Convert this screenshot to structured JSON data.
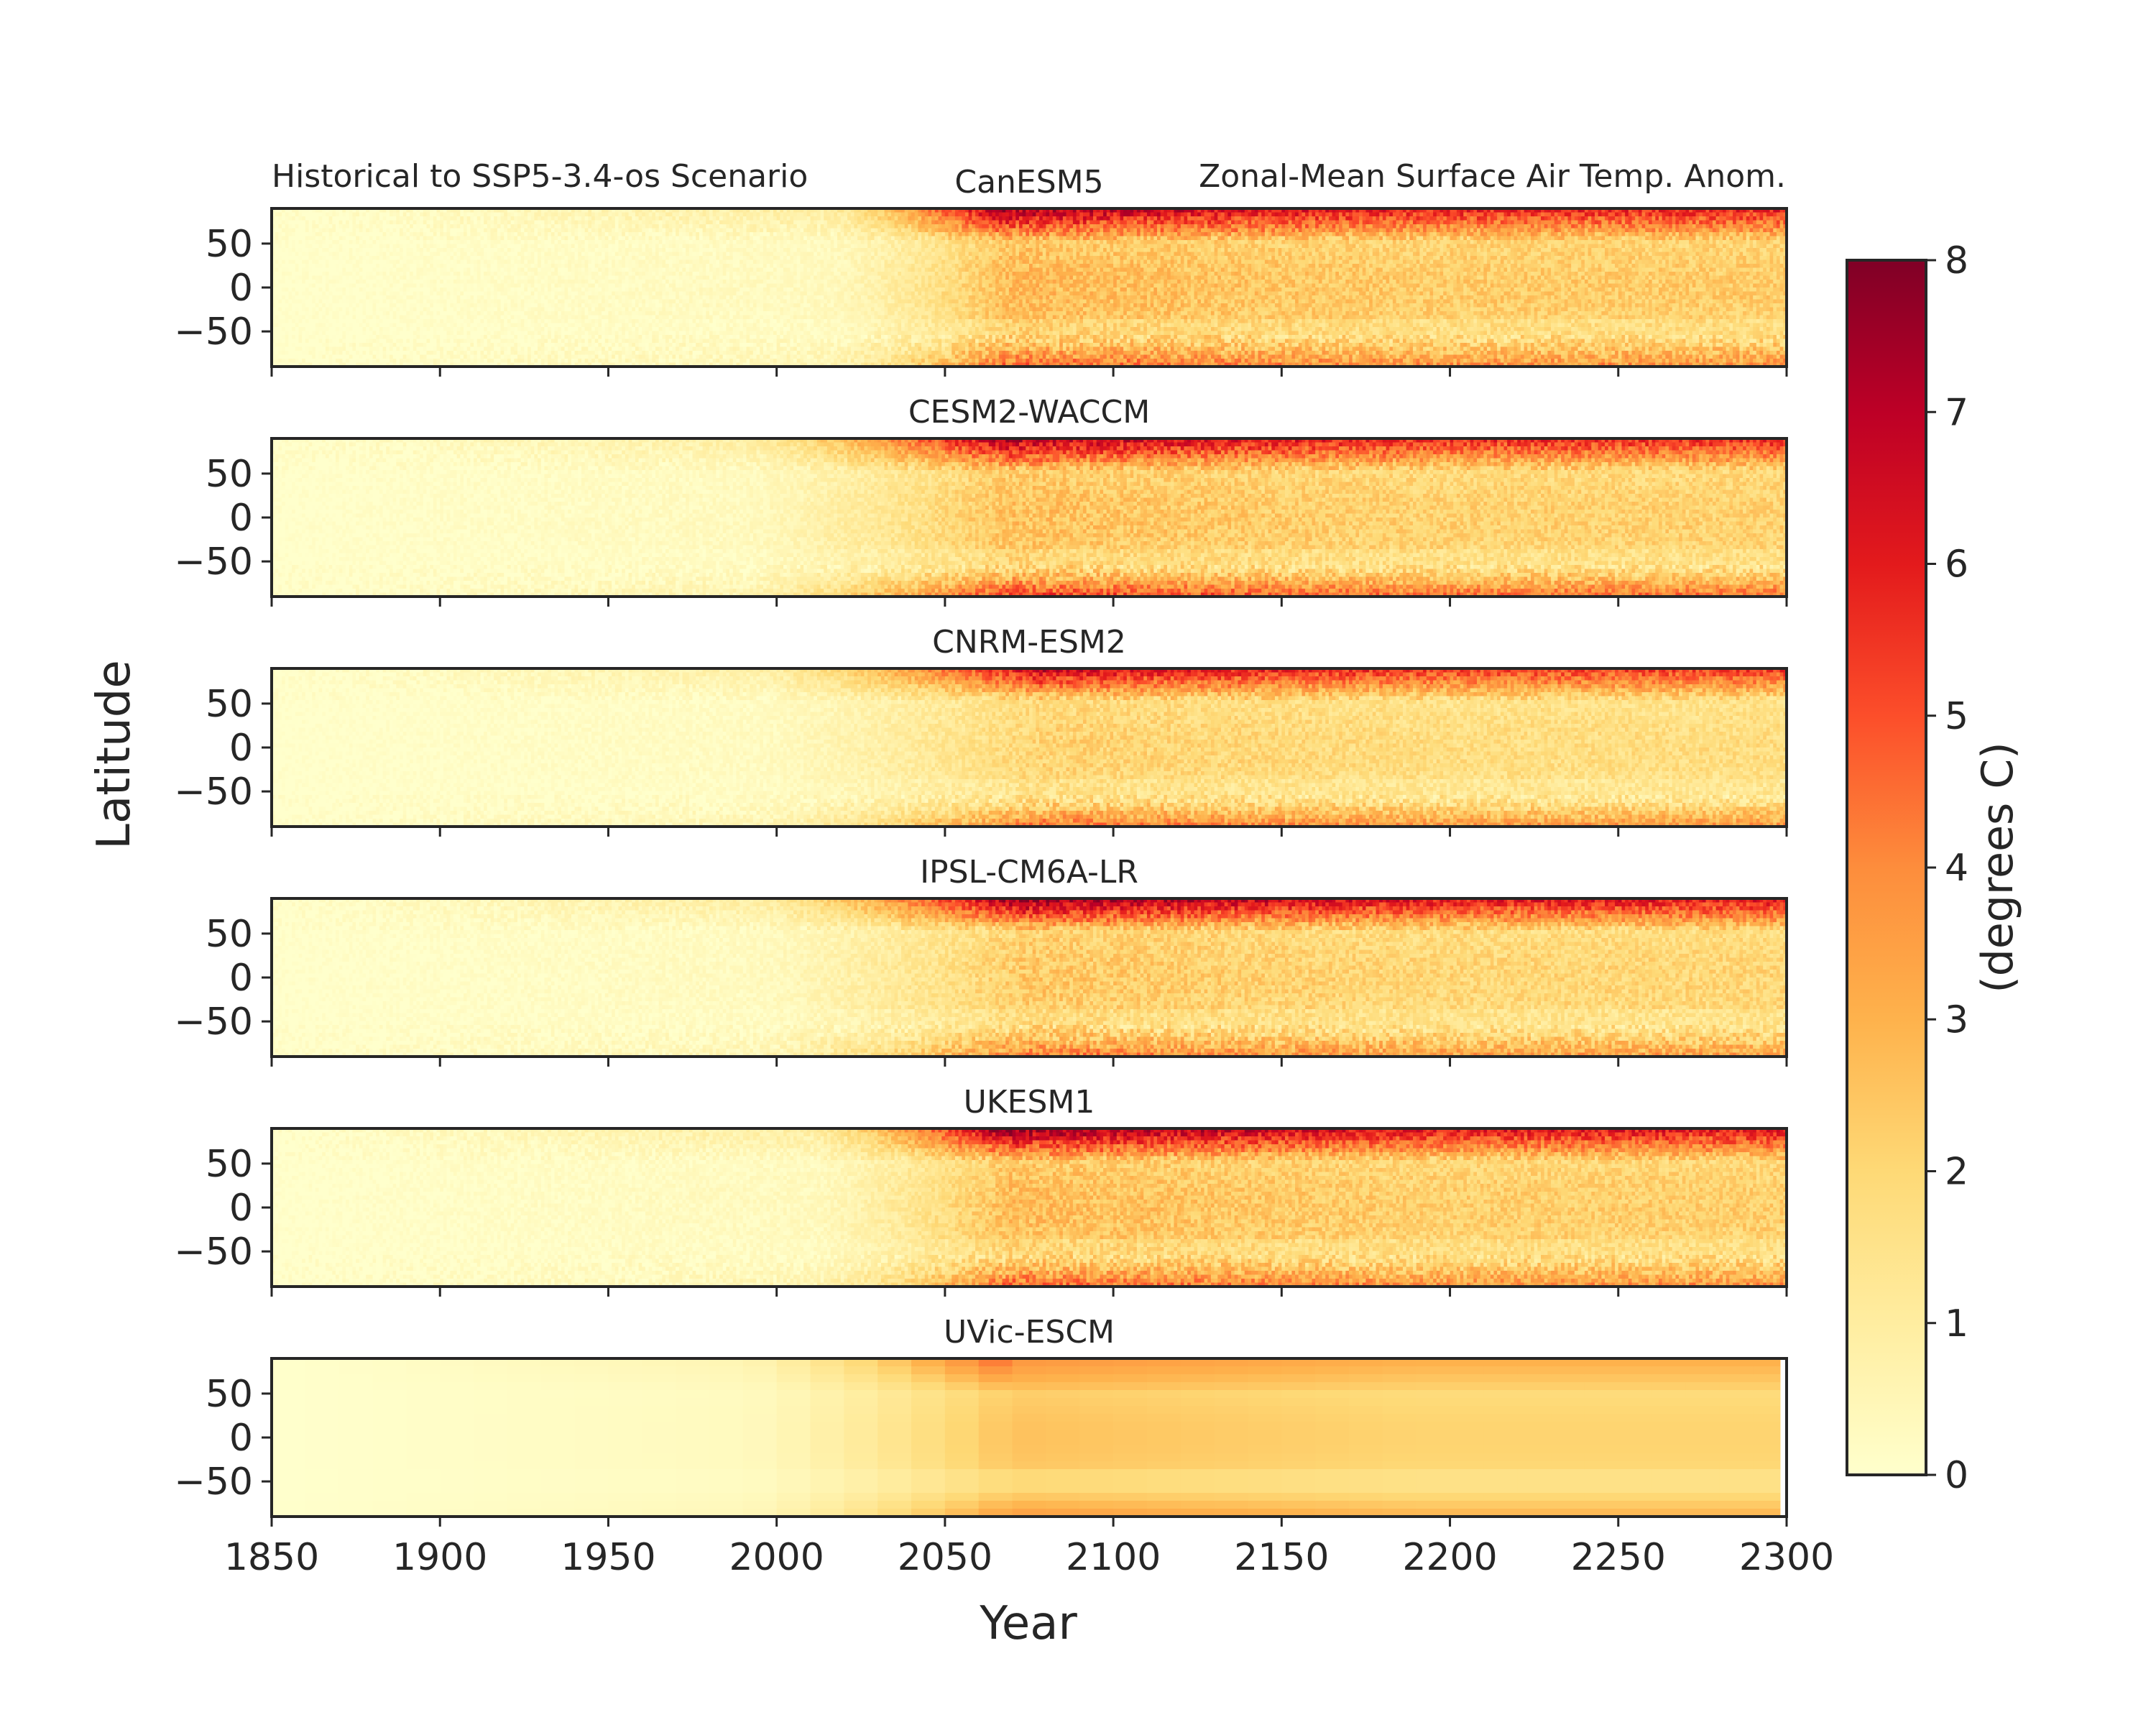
{
  "figure": {
    "title_left": "Historical to SSP5-3.4-os Scenario",
    "title_right": "Zonal-Mean Surface Air Temp. Anom.",
    "xlabel": "Year",
    "ylabel": "Latitude"
  },
  "colorbar": {
    "label": "(degrees C)",
    "range": [
      0,
      8
    ],
    "ticks": [
      "0",
      "1",
      "2",
      "3",
      "4",
      "5",
      "6",
      "7",
      "8"
    ],
    "colormap": "YlOrRd",
    "stops": [
      "#ffffcc",
      "#ffeda0",
      "#fed976",
      "#feb24c",
      "#fd8d3c",
      "#fc4e2a",
      "#e31a1c",
      "#bd0026",
      "#800026"
    ]
  },
  "chart_data": {
    "type": "heatmap",
    "xlim": [
      1850,
      2300
    ],
    "ylim": [
      -90,
      90
    ],
    "x_ticks": [
      "1850",
      "1900",
      "1950",
      "2000",
      "2050",
      "2100",
      "2150",
      "2200",
      "2250",
      "2300"
    ],
    "y_ticks": [
      "50",
      "0",
      "−50"
    ],
    "x_tick_values": [
      1850,
      1900,
      1950,
      2000,
      2050,
      2100,
      2150,
      2200,
      2250,
      2300
    ],
    "y_tick_values": [
      50,
      0,
      -50
    ],
    "vmin": 0,
    "vmax": 8,
    "panels": [
      {
        "model": "CanESM5",
        "peak_year": 2070,
        "onset_year": 2015,
        "arctic_peak": 8.0,
        "arctic_late": 7.2,
        "tropic_peak": 2.8,
        "antarctic_peak": 4.6,
        "noise": 0.55,
        "smooth": false
      },
      {
        "model": "CESM2-WACCM",
        "peak_year": 2070,
        "onset_year": 1990,
        "arctic_peak": 7.4,
        "arctic_late": 7.0,
        "tropic_peak": 2.6,
        "antarctic_peak": 5.4,
        "noise": 0.55,
        "smooth": false
      },
      {
        "model": "CNRM-ESM2",
        "peak_year": 2080,
        "onset_year": 1995,
        "arctic_peak": 7.0,
        "arctic_late": 6.6,
        "tropic_peak": 2.1,
        "antarctic_peak": 4.4,
        "noise": 0.5,
        "smooth": false
      },
      {
        "model": "IPSL-CM6A-LR",
        "peak_year": 2075,
        "onset_year": 1995,
        "arctic_peak": 8.0,
        "arctic_late": 7.6,
        "tropic_peak": 2.4,
        "antarctic_peak": 4.2,
        "noise": 0.55,
        "smooth": false
      },
      {
        "model": "UKESM1",
        "peak_year": 2070,
        "onset_year": 2010,
        "arctic_peak": 8.0,
        "arctic_late": 7.6,
        "tropic_peak": 2.7,
        "antarctic_peak": 4.6,
        "noise": 0.55,
        "smooth": false
      },
      {
        "model": "UVic-ESCM",
        "peak_year": 2070,
        "onset_year": 1990,
        "arctic_peak": 4.8,
        "arctic_late": 3.8,
        "tropic_peak": 2.6,
        "antarctic_peak": 3.6,
        "noise": 0.0,
        "smooth": true,
        "end_year": 2298
      }
    ]
  }
}
